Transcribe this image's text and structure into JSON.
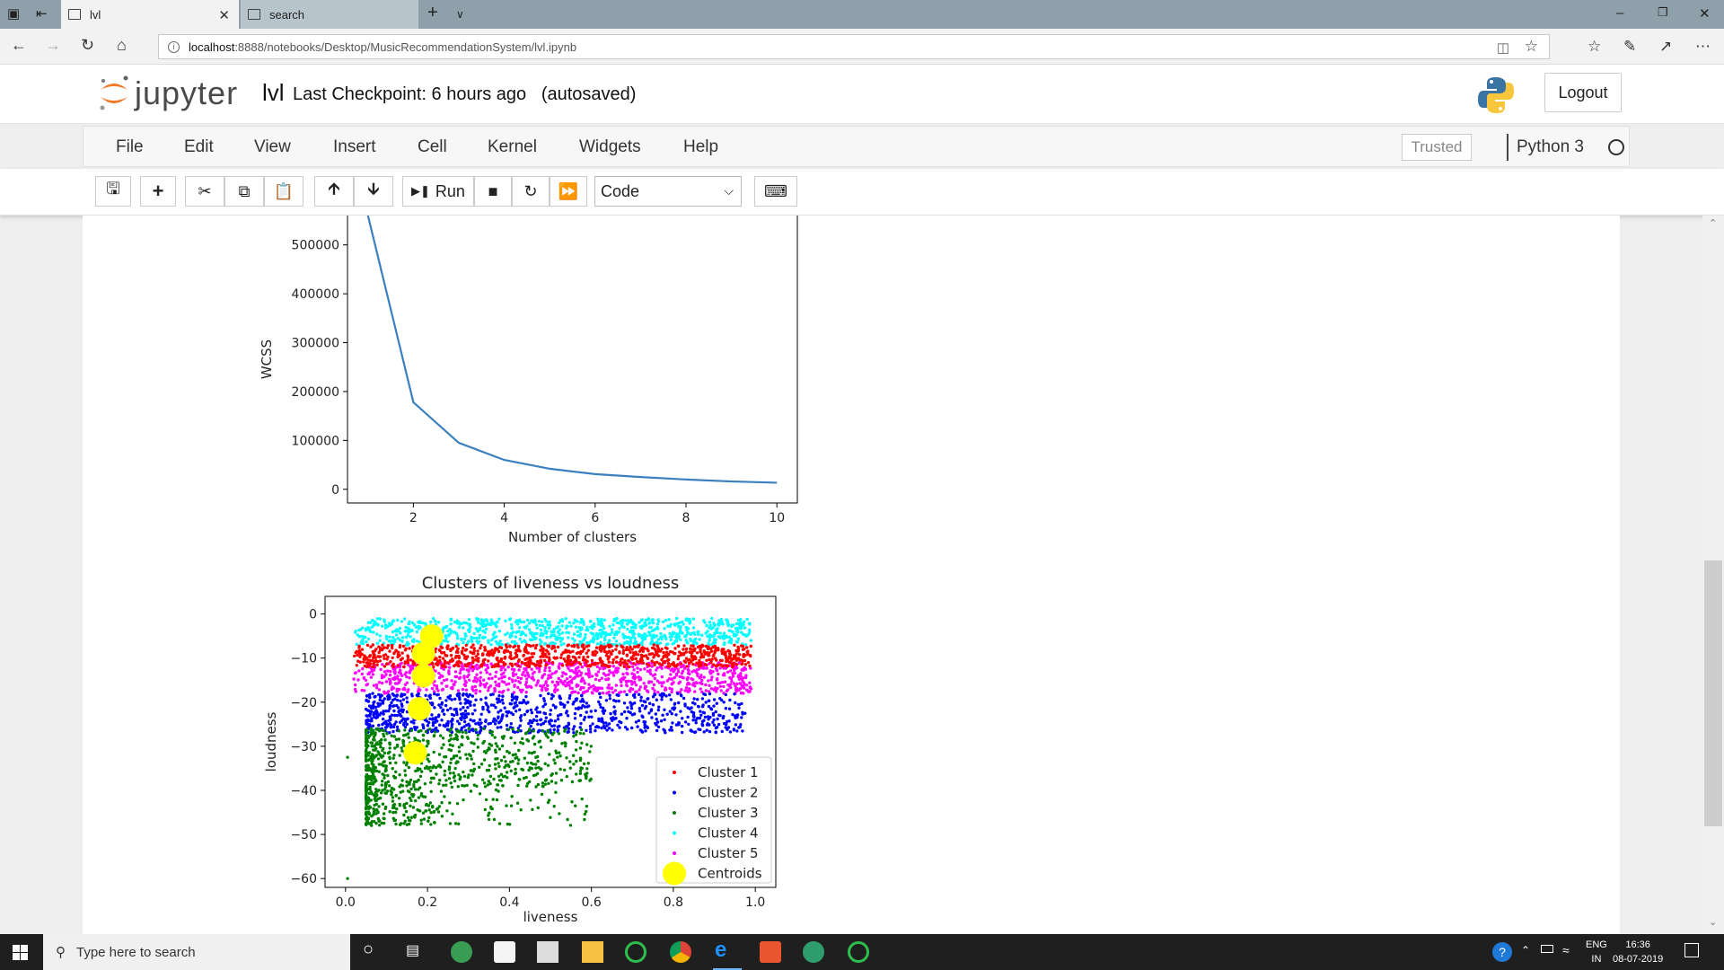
{
  "browser": {
    "tabs": [
      {
        "label": "lvl",
        "active": true
      },
      {
        "label": "search",
        "active": false
      }
    ],
    "url_host": "localhost",
    "url_rest": ":8888/notebooks/Desktop/MusicRecommendationSystem/lvl.ipynb"
  },
  "jupyter": {
    "logo_text": "jupyter",
    "notebook_name": "lvl",
    "checkpoint": "Last Checkpoint: 6 hours ago",
    "autosaved": "(autosaved)",
    "logout_label": "Logout",
    "menu": [
      "File",
      "Edit",
      "View",
      "Insert",
      "Cell",
      "Kernel",
      "Widgets",
      "Help"
    ],
    "trusted_label": "Trusted",
    "kernel_name": "Python 3",
    "run_label": "Run",
    "cell_type": "Code"
  },
  "taskbar": {
    "search_placeholder": "Type here to search",
    "lang": "ENG",
    "region": "IN",
    "time": "16:36",
    "date": "08-07-2019"
  },
  "colors": {
    "line": "#3a7fc0",
    "cluster1": "#ff0000",
    "cluster2": "#0000ff",
    "cluster3": "#008000",
    "cluster4": "#00ffff",
    "cluster5": "#ff00ff",
    "centroid": "#ffff00"
  },
  "chart_data": [
    {
      "type": "line",
      "title": "",
      "xlabel": "Number of clusters",
      "ylabel": "WCSS",
      "x": [
        1,
        2,
        3,
        4,
        5,
        6,
        7,
        8,
        9,
        10
      ],
      "series": [
        {
          "values": [
            560000,
            178000,
            95000,
            60000,
            42000,
            31000,
            25000,
            20000,
            16000,
            13500
          ]
        }
      ],
      "xticks": [
        "2",
        "4",
        "6",
        "8",
        "10"
      ],
      "yticks": [
        "0",
        "100000",
        "200000",
        "300000",
        "400000",
        "500000"
      ],
      "xlim": [
        0.55,
        10.45
      ],
      "ylim": [
        -28000,
        560000
      ]
    },
    {
      "type": "scatter",
      "title": "Clusters of liveness vs loudness",
      "xlabel": "liveness",
      "ylabel": "loudness",
      "xticks": [
        "0.0",
        "0.2",
        "0.4",
        "0.6",
        "0.8",
        "1.0"
      ],
      "yticks": [
        "0",
        "−10",
        "−20",
        "−30",
        "−40",
        "−50",
        "−60"
      ],
      "xlim": [
        -0.05,
        1.05
      ],
      "ylim": [
        -62,
        4
      ],
      "legend_position": "lower right",
      "series": [
        {
          "name": "Cluster 1",
          "y_range": [
            -12,
            -7
          ]
        },
        {
          "name": "Cluster 2",
          "y_range": [
            -27,
            -18
          ]
        },
        {
          "name": "Cluster 3",
          "y_range": [
            -48,
            -26
          ]
        },
        {
          "name": "Cluster 4",
          "y_range": [
            -7,
            -1
          ]
        },
        {
          "name": "Cluster 5",
          "y_range": [
            -18,
            -11
          ]
        },
        {
          "name": "Centroids",
          "points": [
            [
              0.21,
              -5
            ],
            [
              0.19,
              -9
            ],
            [
              0.19,
              -14
            ],
            [
              0.18,
              -21.5
            ],
            [
              0.17,
              -31.5
            ]
          ]
        }
      ]
    }
  ]
}
